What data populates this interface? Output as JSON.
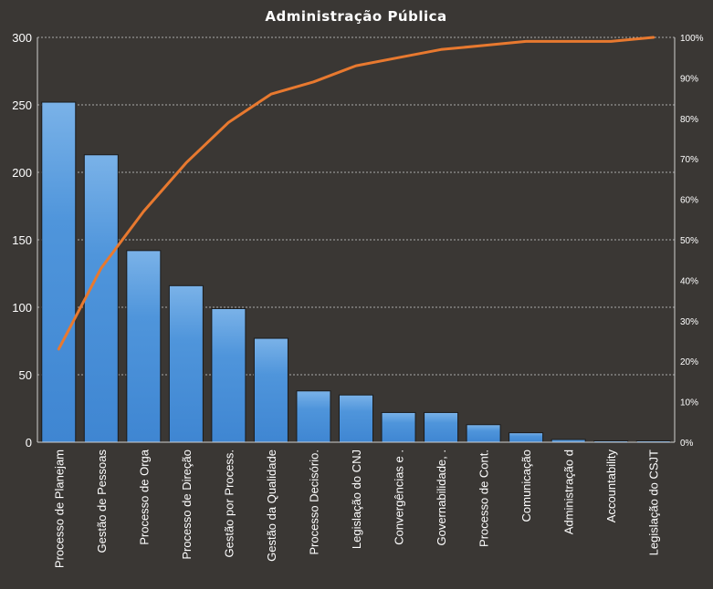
{
  "chart_data": {
    "type": "bar",
    "title": "Administração  Pública",
    "categories": [
      "Processo de Planejam",
      "Gestão de Pessoas",
      "Processo de Orga",
      "Processo de Direção",
      "Gestão por Process.",
      "Gestão da Qualidade",
      "Processo Decisório.",
      "Legislação do CNJ",
      "Convergências e .",
      "Governabilidade, .",
      "Processo de Cont.",
      "Comunicação",
      "Administração d",
      "Accountability",
      "Legislação do CSJT"
    ],
    "series": [
      {
        "values": [
          252,
          213,
          142,
          116,
          99,
          77,
          38,
          35,
          22,
          22,
          13,
          7,
          2,
          1,
          1
        ]
      },
      {
        "axis": "secondary",
        "type": "line",
        "values": [
          0.23,
          0.43,
          0.57,
          0.69,
          0.79,
          0.86,
          0.89,
          0.93,
          0.95,
          0.97,
          0.98,
          0.99,
          0.99,
          0.99,
          1.0
        ]
      }
    ],
    "ylim": [
      0,
      300
    ],
    "yticks": [
      0,
      50,
      100,
      150,
      200,
      250,
      300
    ],
    "y2lim": [
      0,
      1
    ],
    "y2ticks": [
      "0%",
      "10%",
      "20%",
      "30%",
      "40%",
      "50%",
      "60%",
      "70%",
      "80%",
      "90%",
      "100%"
    ],
    "grid": true,
    "colors": {
      "bar": "#4a8fd6",
      "bar_light": "#7ab2e8",
      "line": "#e8792f",
      "background": "#3a3734"
    }
  }
}
